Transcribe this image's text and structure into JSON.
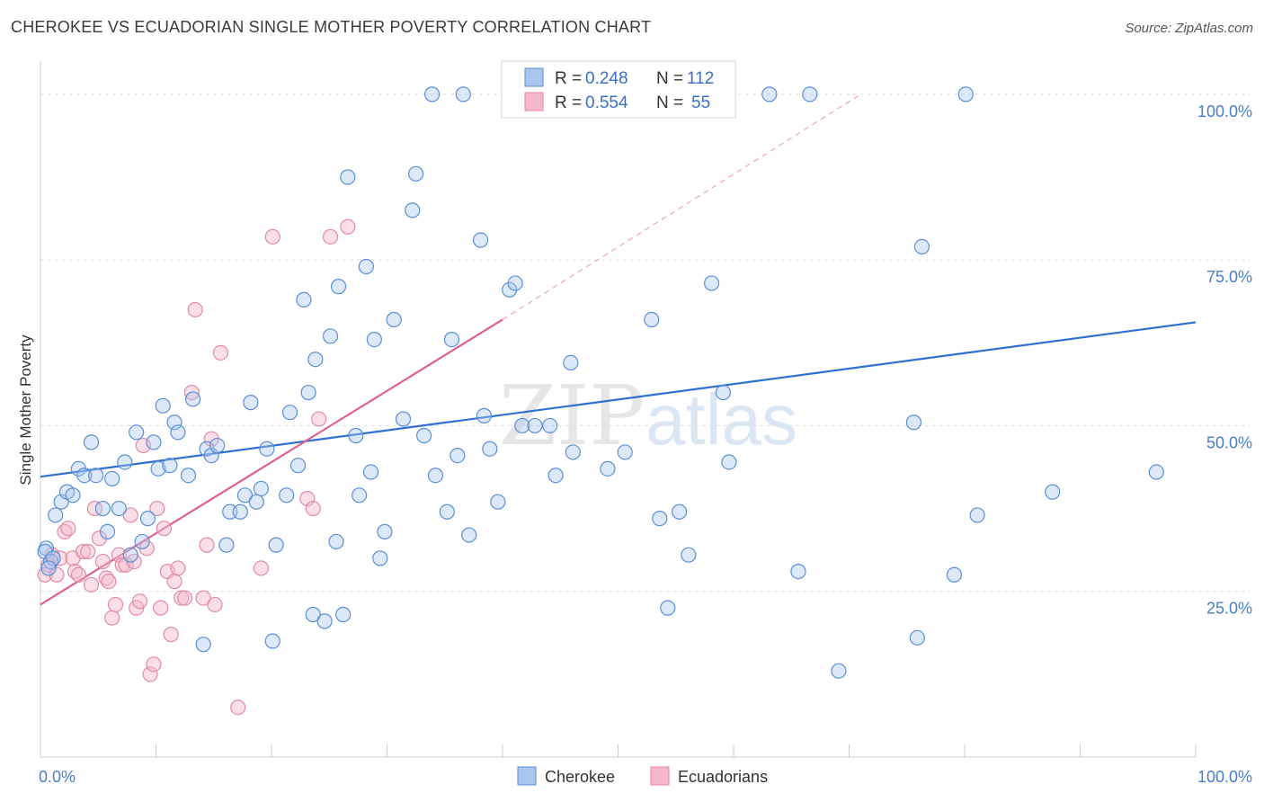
{
  "header": {
    "title": "CHEROKEE VS ECUADORIAN SINGLE MOTHER POVERTY CORRELATION CHART",
    "source": "Source: ZipAtlas.com"
  },
  "watermark": {
    "zip": "ZIP",
    "atlas": "atlas"
  },
  "colors": {
    "blue_fill": "#a9c6ee",
    "blue_stroke": "#5b8fd6",
    "blue_line": "#2f6fd0",
    "pink_fill": "#f4b7c9",
    "pink_stroke": "#e28aa6",
    "pink_line": "#e0608c",
    "grid": "#dddddd",
    "axis_text": "#4a7cc7"
  },
  "legend": {
    "rows": [
      {
        "r_label": "R =",
        "r_value": "0.248",
        "n_label": "N =",
        "n_value": "112"
      },
      {
        "r_label": "R =",
        "r_value": "0.554",
        "n_label": "N =",
        "n_value": "55"
      }
    ]
  },
  "bottom_legend": {
    "items": [
      "Cherokee",
      "Ecuadorians"
    ]
  },
  "chart_data": {
    "type": "scatter",
    "title": "CHEROKEE VS ECUADORIAN SINGLE MOTHER POVERTY CORRELATION CHART",
    "xlabel": "",
    "ylabel": "Single Mother Poverty",
    "xlim": [
      0,
      100
    ],
    "ylim": [
      0,
      105
    ],
    "x_tick_labels": [
      "0.0%",
      "100.0%"
    ],
    "y_ticks": [
      25,
      50,
      75,
      100
    ],
    "y_tick_labels": [
      "25.0%",
      "50.0%",
      "75.0%",
      "100.0%"
    ],
    "grid": true,
    "legend_position": "top-center",
    "series": [
      {
        "name": "Cherokee",
        "color": "#a9c6ee",
        "r": 0.248,
        "n": 112,
        "trend": {
          "x": [
            0,
            100
          ],
          "y": [
            42.3,
            65.6
          ]
        },
        "points": [
          [
            0.5,
            31.5
          ],
          [
            1.3,
            36.5
          ],
          [
            1.8,
            38.5
          ],
          [
            2.3,
            40
          ],
          [
            2.8,
            39.5
          ],
          [
            3.3,
            43.5
          ],
          [
            3.8,
            42.5
          ],
          [
            4.4,
            47.5
          ],
          [
            4.8,
            42.5
          ],
          [
            5.4,
            37.5
          ],
          [
            5.8,
            34
          ],
          [
            6.2,
            42
          ],
          [
            6.8,
            37.5
          ],
          [
            7.3,
            44.5
          ],
          [
            7.8,
            30.5
          ],
          [
            8.3,
            49
          ],
          [
            8.8,
            32.5
          ],
          [
            9.3,
            36
          ],
          [
            9.8,
            47.5
          ],
          [
            10.2,
            43.5
          ],
          [
            10.6,
            53
          ],
          [
            11.2,
            44
          ],
          [
            11.6,
            50.5
          ],
          [
            11.9,
            49
          ],
          [
            12.8,
            42.5
          ],
          [
            13.2,
            54
          ],
          [
            14.1,
            17
          ],
          [
            14.4,
            46.5
          ],
          [
            14.8,
            45.5
          ],
          [
            15.3,
            47
          ],
          [
            16.1,
            32
          ],
          [
            16.4,
            37
          ],
          [
            17.3,
            37
          ],
          [
            17.7,
            39.5
          ],
          [
            18.2,
            53.5
          ],
          [
            18.7,
            38.5
          ],
          [
            19.1,
            40.5
          ],
          [
            19.6,
            46.5
          ],
          [
            20.1,
            17.5
          ],
          [
            20.4,
            32
          ],
          [
            21.3,
            39.5
          ],
          [
            21.6,
            52
          ],
          [
            22.3,
            44
          ],
          [
            22.8,
            69
          ],
          [
            23.2,
            55
          ],
          [
            23.6,
            21.5
          ],
          [
            23.8,
            60
          ],
          [
            24.6,
            20.5
          ],
          [
            25.1,
            63.5
          ],
          [
            25.6,
            32.5
          ],
          [
            25.8,
            71
          ],
          [
            26.2,
            21.5
          ],
          [
            26.6,
            87.5
          ],
          [
            27.3,
            48.5
          ],
          [
            27.6,
            39.5
          ],
          [
            28.2,
            74
          ],
          [
            28.6,
            43
          ],
          [
            28.9,
            63
          ],
          [
            29.4,
            30
          ],
          [
            29.8,
            34
          ],
          [
            30.6,
            66
          ],
          [
            31.4,
            51
          ],
          [
            32.2,
            82.5
          ],
          [
            32.5,
            88
          ],
          [
            33.2,
            48.5
          ],
          [
            33.9,
            100
          ],
          [
            34.2,
            42.5
          ],
          [
            35.2,
            37
          ],
          [
            35.6,
            63
          ],
          [
            36.1,
            45.5
          ],
          [
            36.6,
            100
          ],
          [
            37.1,
            33.5
          ],
          [
            38.1,
            78
          ],
          [
            38.4,
            51.5
          ],
          [
            38.9,
            46.5
          ],
          [
            39.6,
            38.5
          ],
          [
            40.6,
            70.5
          ],
          [
            41.1,
            71.5
          ],
          [
            41.7,
            50
          ],
          [
            42.3,
            100
          ],
          [
            42.8,
            50
          ],
          [
            44.1,
            50
          ],
          [
            44.6,
            42.5
          ],
          [
            45.9,
            59.5
          ],
          [
            46.1,
            46
          ],
          [
            49.1,
            43.5
          ],
          [
            50.6,
            46
          ],
          [
            52.6,
            100
          ],
          [
            52.9,
            66
          ],
          [
            53.6,
            36
          ],
          [
            54.3,
            22.5
          ],
          [
            55.3,
            37
          ],
          [
            56.1,
            30.5
          ],
          [
            58.1,
            71.5
          ],
          [
            59.1,
            55
          ],
          [
            59.6,
            44.5
          ],
          [
            63.1,
            100
          ],
          [
            65.6,
            28
          ],
          [
            66.6,
            100
          ],
          [
            69.1,
            13
          ],
          [
            75.6,
            50.5
          ],
          [
            75.9,
            18
          ],
          [
            76.3,
            77
          ],
          [
            79.1,
            27.5
          ],
          [
            80.1,
            100
          ],
          [
            81.1,
            36.5
          ],
          [
            87.6,
            40
          ],
          [
            96.6,
            43
          ],
          [
            0.4,
            31
          ],
          [
            0.9,
            29.5
          ],
          [
            1.1,
            30
          ],
          [
            0.7,
            28.5
          ]
        ]
      },
      {
        "name": "Ecuadorians",
        "color": "#f4b7c9",
        "r": 0.554,
        "n": 55,
        "trend": {
          "x": [
            0,
            40
          ],
          "y": [
            23,
            66
          ]
        },
        "trend_extension": {
          "x": [
            40,
            71
          ],
          "y": [
            66,
            100
          ]
        },
        "points": [
          [
            0.4,
            27.5
          ],
          [
            0.7,
            29
          ],
          [
            1,
            30.5
          ],
          [
            1.4,
            27.5
          ],
          [
            1.7,
            30
          ],
          [
            2.1,
            34
          ],
          [
            2.4,
            34.5
          ],
          [
            2.8,
            30
          ],
          [
            3,
            28
          ],
          [
            3.3,
            27.5
          ],
          [
            3.7,
            31
          ],
          [
            4.1,
            31
          ],
          [
            4.4,
            26
          ],
          [
            4.7,
            37.5
          ],
          [
            5.1,
            33
          ],
          [
            5.4,
            29.5
          ],
          [
            5.7,
            27
          ],
          [
            5.9,
            26.5
          ],
          [
            6.2,
            21
          ],
          [
            6.5,
            23
          ],
          [
            6.8,
            30.5
          ],
          [
            7.1,
            29
          ],
          [
            7.4,
            29
          ],
          [
            7.8,
            36.5
          ],
          [
            8.1,
            29.5
          ],
          [
            8.3,
            22.5
          ],
          [
            8.6,
            23.5
          ],
          [
            8.9,
            47
          ],
          [
            9.2,
            31.5
          ],
          [
            9.5,
            12.5
          ],
          [
            9.8,
            14
          ],
          [
            10.1,
            37.5
          ],
          [
            10.4,
            22.5
          ],
          [
            10.7,
            34.5
          ],
          [
            11,
            28
          ],
          [
            11.3,
            18.5
          ],
          [
            11.6,
            26.5
          ],
          [
            11.9,
            28.5
          ],
          [
            12.2,
            24
          ],
          [
            12.5,
            24
          ],
          [
            13.1,
            55
          ],
          [
            13.4,
            67.5
          ],
          [
            14.1,
            24
          ],
          [
            14.4,
            32
          ],
          [
            14.8,
            48
          ],
          [
            15.1,
            23
          ],
          [
            15.6,
            61
          ],
          [
            17.1,
            7.5
          ],
          [
            19.1,
            28.5
          ],
          [
            20.1,
            78.5
          ],
          [
            23.1,
            39
          ],
          [
            23.6,
            37.5
          ],
          [
            24.1,
            51
          ],
          [
            25.1,
            78.5
          ],
          [
            26.6,
            80
          ]
        ]
      }
    ]
  }
}
